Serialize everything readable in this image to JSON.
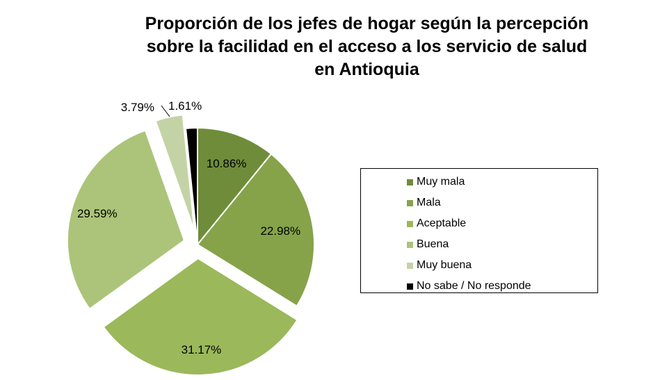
{
  "chart_data": {
    "type": "pie",
    "title": [
      "Proporción de los jefes de hogar según la percepción",
      "sobre la facilidad en el acceso a los servicio de salud",
      "en Antioquia"
    ],
    "categories": [
      "Muy mala",
      "Mala",
      "Aceptable",
      "Buena",
      "Muy buena",
      "No sabe / No responde"
    ],
    "values": [
      10.86,
      22.98,
      31.17,
      29.59,
      3.79,
      1.61
    ],
    "data_labels": [
      "10.86%",
      "22.98%",
      "31.17%",
      "29.59%",
      "3.79%",
      "1.61%"
    ],
    "colors": [
      "#6F8C3A",
      "#86A34A",
      "#9BB85A",
      "#ABC479",
      "#C4D3A6",
      "#000000"
    ],
    "legend_position": "right",
    "exploded": true
  }
}
